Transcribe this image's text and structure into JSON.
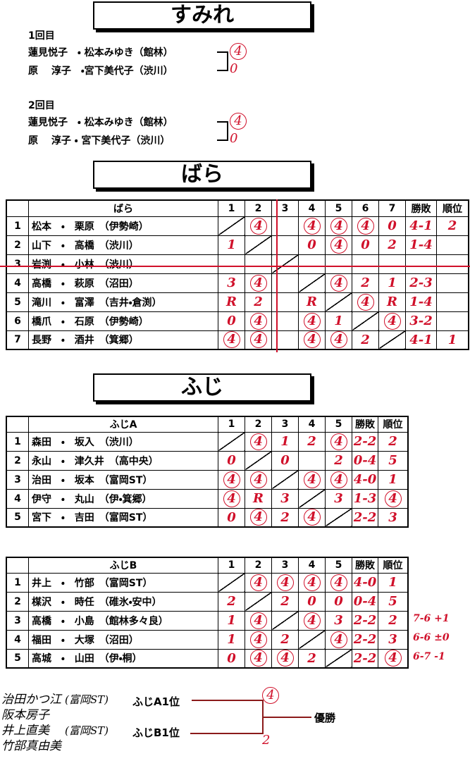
{
  "sumire": {
    "title": "すみれ",
    "rounds": [
      {
        "label": "1回目",
        "pairs": [
          {
            "name": "蓮見悦子　・ 松本みゆき（館林）",
            "score": "4"
          },
          {
            "name": "原　 淳子　・宮下美代子（渋川）",
            "score": "0"
          }
        ]
      },
      {
        "label": "2回目",
        "pairs": [
          {
            "name": "蓮見悦子　・ 松本みゆき（館林）",
            "score": "4"
          },
          {
            "name": "原　 淳子 ・ 宮下美代子（渋川）",
            "score": "0"
          }
        ]
      }
    ]
  },
  "bara": {
    "title": "ばら",
    "table": {
      "header": [
        "ばら",
        "1",
        "2",
        "3",
        "4",
        "5",
        "6",
        "7",
        "勝敗",
        "順位"
      ],
      "rows": [
        {
          "no": "1",
          "name": "松本　・　栗原　（伊勢崎）",
          "scores": [
            null,
            "4",
            null,
            "4",
            "4",
            "4",
            "0"
          ],
          "record": "4-1",
          "rank": "2"
        },
        {
          "no": "2",
          "name": "山下　・　高橋　（渋川）",
          "scores": [
            "1",
            null,
            null,
            "0",
            "4",
            "0",
            "2"
          ],
          "record": "1-4",
          "rank": null
        },
        {
          "no": "3",
          "name": "岩渕　・　小林　（渋川）",
          "scores": [
            null,
            null,
            null,
            null,
            null,
            null,
            null
          ],
          "record": null,
          "rank": null
        },
        {
          "no": "4",
          "name": "高橋　・　萩原　（沼田）",
          "scores": [
            "3",
            "4",
            null,
            null,
            "4",
            "2",
            "1"
          ],
          "record": "2-3",
          "rank": null
        },
        {
          "no": "5",
          "name": "滝川　・　富澤　（吉井・倉渕）",
          "scores": [
            "R",
            "2",
            null,
            "R",
            null,
            "4",
            "R"
          ],
          "record": "1-4",
          "rank": null
        },
        {
          "no": "6",
          "name": "橋爪　・　石原　（伊勢崎）",
          "scores": [
            "0",
            "4",
            null,
            "4",
            "1",
            null,
            "4"
          ],
          "record": "3-2",
          "rank": null
        },
        {
          "no": "7",
          "name": "長野　・　酒井　（箕郷）",
          "scores": [
            "4",
            "4",
            null,
            "4",
            "4",
            "2",
            null
          ],
          "record": "4-1",
          "rank": "1"
        }
      ]
    }
  },
  "fuji": {
    "title": "ふじ",
    "tables": [
      {
        "header": [
          "ふじA",
          "1",
          "2",
          "3",
          "4",
          "5",
          "勝敗",
          "順位"
        ],
        "rows": [
          {
            "no": "1",
            "name": "森田　・　坂入　（渋川）",
            "scores": [
              null,
              "4",
              "1",
              "2",
              "4"
            ],
            "record": "2-2",
            "rank": "2"
          },
          {
            "no": "2",
            "name": "永山　・　津久井　（高中央）",
            "scores": [
              "0",
              null,
              "0",
              null,
              "2"
            ],
            "record": "0-4",
            "rank": "5"
          },
          {
            "no": "3",
            "name": "治田　・　坂本　（富岡ST）",
            "scores": [
              "4",
              "4",
              null,
              "4",
              "4"
            ],
            "record": "4-0",
            "rank": "1"
          },
          {
            "no": "4",
            "name": "伊守　・　丸山　（伊・箕郷）",
            "scores": [
              "4",
              "R",
              "3",
              null,
              "3"
            ],
            "record": "1-3",
            "rank": "4"
          },
          {
            "no": "5",
            "name": "宮下　・　吉田　（富岡ST）",
            "scores": [
              "0",
              "4",
              "2",
              "4",
              null
            ],
            "record": "2-2",
            "rank": "3"
          }
        ]
      },
      {
        "header": [
          "ふじB",
          "1",
          "2",
          "3",
          "4",
          "5",
          "勝敗",
          "順位"
        ],
        "rows": [
          {
            "no": "1",
            "name": "井上　・　竹部　（富岡ST）",
            "scores": [
              null,
              "4",
              "4",
              "4",
              "4"
            ],
            "record": "4-0",
            "rank": "1"
          },
          {
            "no": "2",
            "name": "楳沢　・　時任　（碓氷・安中）",
            "scores": [
              "2",
              null,
              "2",
              "0",
              "0"
            ],
            "record": "0-4",
            "rank": "5"
          },
          {
            "no": "3",
            "name": "高橋　・　小島　（館林多々良）",
            "scores": [
              "1",
              "4",
              null,
              "4",
              "3"
            ],
            "record": "2-2",
            "rank": "2",
            "note": "7-6 +1"
          },
          {
            "no": "4",
            "name": "福田　・　大塚　（沼田）",
            "scores": [
              "1",
              "4",
              "2",
              null,
              "4"
            ],
            "record": "2-2",
            "rank": "3",
            "note": "6-6 ±0"
          },
          {
            "no": "5",
            "name": "高城　・　山田　（伊・桐）",
            "scores": [
              "0",
              "4",
              "4",
              "2",
              null
            ],
            "record": "2-2",
            "rank": "4",
            "note": "6-7 -1"
          }
        ]
      }
    ]
  },
  "final": {
    "entries": [
      {
        "names": [
          "治田かつ江",
          "阪本房子"
        ],
        "club": "(富岡ST)",
        "seed": "ふじA1位",
        "score": "4"
      },
      {
        "names": [
          "井上直美",
          "竹部真由美"
        ],
        "club": "(富岡ST)",
        "seed": "ふじB1位",
        "score": "2"
      }
    ],
    "result": "優勝"
  }
}
